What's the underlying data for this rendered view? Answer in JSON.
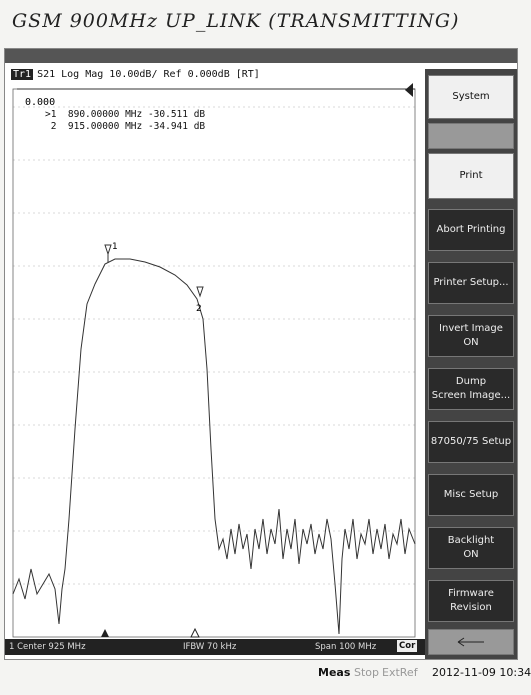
{
  "header": {
    "title": "GSM 900MHz UP_LINK (TRANSMITTING)"
  },
  "trace": {
    "tab": "Tr1",
    "label": "S21 Log Mag 10.00dB/ Ref 0.000dB [RT]",
    "ref": "0.000",
    "markers": [
      {
        "line": ">1  890.00000 MHz -30.511 dB",
        "tag": "1"
      },
      {
        "line": " 2  915.00000 MHz -34.941 dB",
        "tag": "2"
      }
    ]
  },
  "softkeys": [
    "System",
    "Print",
    "Abort Printing",
    "Printer Setup...",
    "Invert Image",
    "ON",
    "Dump",
    "Screen Image...",
    "87050/75 Setup",
    "Misc Setup",
    "Backlight",
    "ON",
    "Firmware",
    "Revision"
  ],
  "footer": {
    "center": "1  Center 925 MHz",
    "ifbw": "IFBW 70 kHz",
    "span": "Span 100 MHz",
    "cor": "Cor"
  },
  "status": {
    "meas": "Meas",
    "stop": "Stop",
    "extref": "ExtRef",
    "time": "2012-11-09 10:34"
  }
}
